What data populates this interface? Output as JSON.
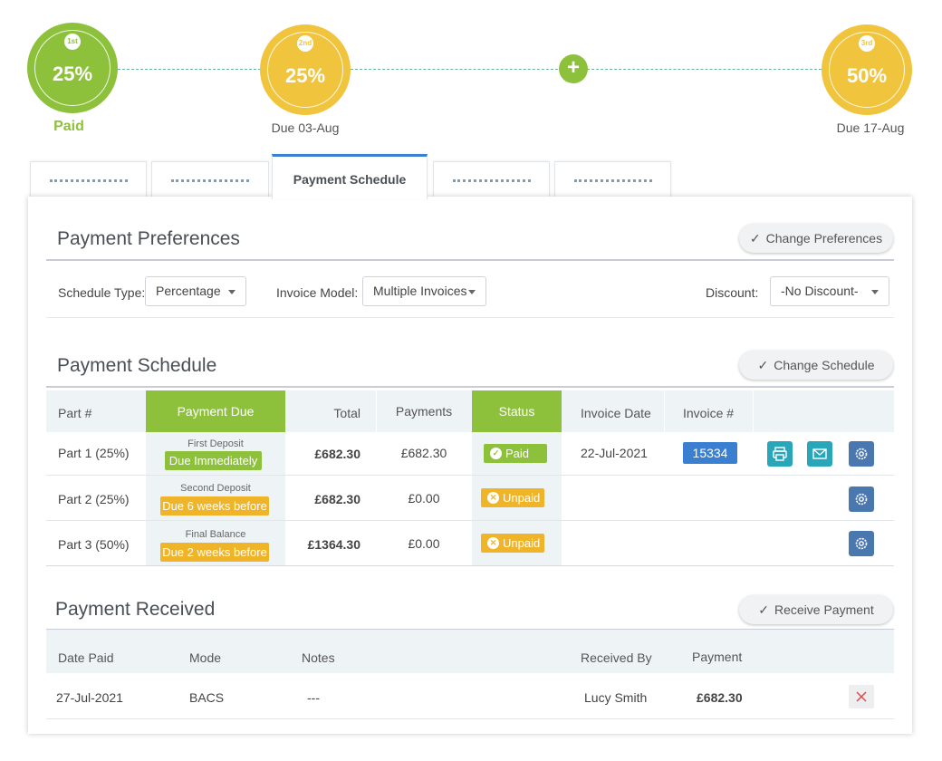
{
  "timeline": {
    "steps": [
      {
        "ordinal": "1st",
        "percent": "25%",
        "label": "Paid",
        "state": "paid",
        "color": "#8dc13c"
      },
      {
        "ordinal": "2nd",
        "percent": "25%",
        "label": "Due 03-Aug",
        "state": "due",
        "color": "#f0c43c"
      },
      {
        "ordinal": "3rd",
        "percent": "50%",
        "label": "Due 17-Aug",
        "state": "due",
        "color": "#f0c43c"
      }
    ],
    "add_label": "+"
  },
  "tabs": [
    {
      "label": "",
      "active": false
    },
    {
      "label": "",
      "active": false
    },
    {
      "label": "Payment Schedule",
      "active": true
    },
    {
      "label": "",
      "active": false
    },
    {
      "label": "",
      "active": false
    }
  ],
  "preferences": {
    "title": "Payment Preferences",
    "change_button": "Change Preferences",
    "schedule_type_label": "Schedule Type:",
    "schedule_type_value": "Percentage",
    "invoice_model_label": "Invoice Model:",
    "invoice_model_value": "Multiple Invoices",
    "discount_label": "Discount:",
    "discount_value": "-No Discount-"
  },
  "schedule": {
    "title": "Payment Schedule",
    "change_button": "Change Schedule",
    "columns": [
      "Part #",
      "Payment Due",
      "Total",
      "Payments",
      "Status",
      "Invoice Date",
      "Invoice #"
    ],
    "rows": [
      {
        "part": "Part  1 (25%)",
        "due_caption": "First Deposit",
        "due_tag": "Due Immediately",
        "total": "£682.30",
        "payments": "£682.30",
        "status": "Paid",
        "invoice_date": "22-Jul-2021",
        "invoice_no": "15334"
      },
      {
        "part": "Part  2 (25%)",
        "due_caption": "Second Deposit",
        "due_tag": "Due 6 weeks before",
        "total": "£682.30",
        "payments": "£0.00",
        "status": "Unpaid",
        "invoice_date": "",
        "invoice_no": ""
      },
      {
        "part": "Part  3 (50%)",
        "due_caption": "Final Balance",
        "due_tag": "Due 2 weeks before",
        "total": "£1364.30",
        "payments": "£0.00",
        "status": "Unpaid",
        "invoice_date": "",
        "invoice_no": ""
      }
    ]
  },
  "received": {
    "title": "Payment Received",
    "button": "Receive Payment",
    "columns": [
      "Date Paid",
      "Mode",
      "Notes",
      "Received By",
      "Payment"
    ],
    "rows": [
      {
        "date_paid": "27-Jul-2021",
        "mode": "BACS",
        "notes": "---",
        "received_by": "Lucy Smith",
        "payment": "£682.30"
      }
    ]
  },
  "icons": {
    "check": "check-icon",
    "print": "printer-icon",
    "email": "envelope-icon",
    "settings": "gear-icon",
    "delete": "close-icon",
    "status_paid": "check-circle-icon",
    "status_unpaid": "x-circle-icon"
  },
  "colors": {
    "green": "#8dc13c",
    "yellow": "#f0c43c",
    "orange": "#f0b429",
    "blue": "#3b7fd0",
    "teal": "#2aa6b9",
    "steel": "#4a77b0",
    "header_bg": "#eef3f5"
  }
}
